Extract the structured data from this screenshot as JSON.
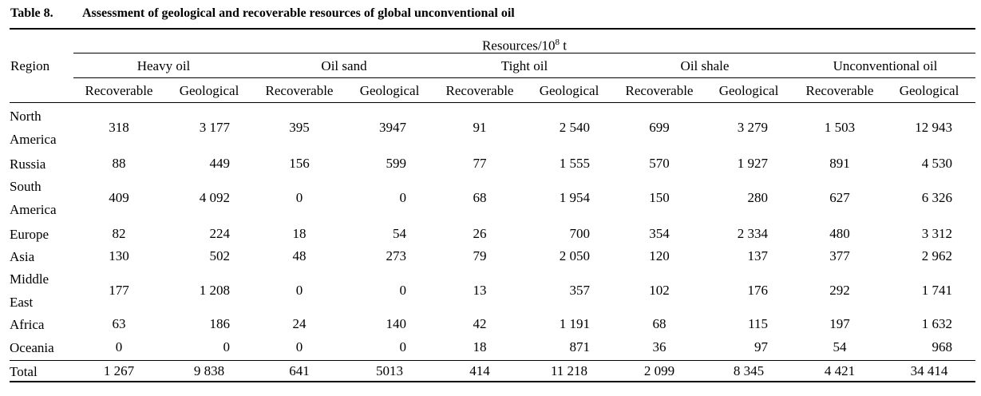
{
  "caption": {
    "label": "Table 8.",
    "title": "Assessment of geological and recoverable resources of global unconventional oil"
  },
  "header": {
    "region": "Region",
    "resources_unit_prefix": "Resources/10",
    "resources_unit_exp": "8",
    "resources_unit_suffix": " t",
    "groups": [
      "Heavy oil",
      "Oil sand",
      "Tight oil",
      "Oil shale",
      "Unconventional oil"
    ],
    "sub": [
      "Recoverable",
      "Geological"
    ]
  },
  "rows": [
    {
      "region": "North America",
      "values": [
        "318",
        "3 177",
        "395",
        "3947",
        "91",
        "2 540",
        "699",
        "3 279",
        "1 503",
        "12 943"
      ]
    },
    {
      "region": "Russia",
      "values": [
        "88",
        "449",
        "156",
        "599",
        "77",
        "1 555",
        "570",
        "1 927",
        "891",
        "4 530"
      ]
    },
    {
      "region": "South America",
      "values": [
        "409",
        "4 092",
        "0",
        "0",
        "68",
        "1 954",
        "150",
        "280",
        "627",
        "6 326"
      ]
    },
    {
      "region": "Europe",
      "values": [
        "82",
        "224",
        "18",
        "54",
        "26",
        "700",
        "354",
        "2 334",
        "480",
        "3 312"
      ]
    },
    {
      "region": "Asia",
      "values": [
        "130",
        "502",
        "48",
        "273",
        "79",
        "2 050",
        "120",
        "137",
        "377",
        "2 962"
      ]
    },
    {
      "region": "Middle East",
      "values": [
        "177",
        "1 208",
        "0",
        "0",
        "13",
        "357",
        "102",
        "176",
        "292",
        "1 741"
      ]
    },
    {
      "region": "Africa",
      "values": [
        "63",
        "186",
        "24",
        "140",
        "42",
        "1 191",
        "68",
        "115",
        "197",
        "1 632"
      ]
    },
    {
      "region": "Oceania",
      "values": [
        "0",
        "0",
        "0",
        "0",
        "18",
        "871",
        "36",
        "97",
        "54",
        "968"
      ]
    },
    {
      "region": "Total",
      "values": [
        "1 267",
        "9 838",
        "641",
        "5013",
        "414",
        "11 218",
        "2 099",
        "8 345",
        "4 421",
        "34 414"
      ]
    }
  ]
}
